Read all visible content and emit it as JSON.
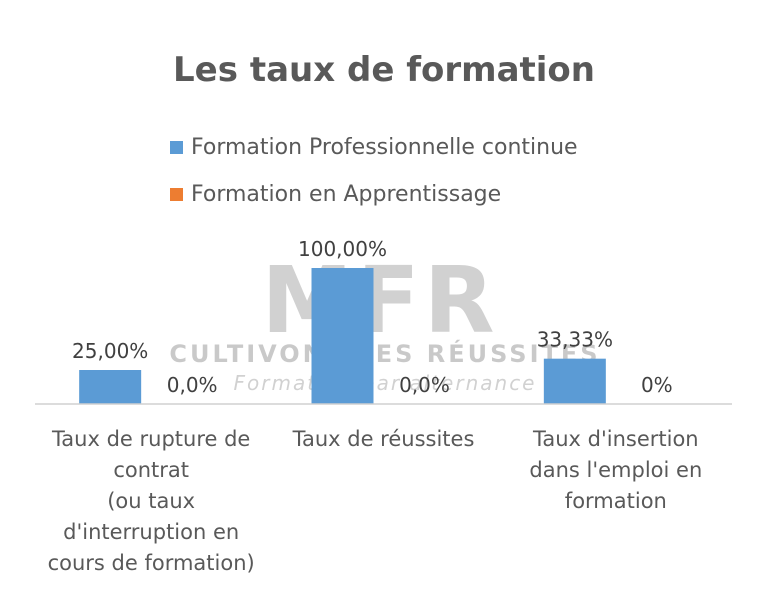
{
  "chart_data": {
    "type": "bar",
    "title": "Les taux de formation",
    "categories": [
      [
        "Taux de rupture de",
        "contrat",
        "(ou taux",
        "d'interruption en",
        "cours de formation)"
      ],
      [
        "Taux de réussites"
      ],
      [
        "Taux d'insertion",
        "dans l'emploi en",
        "formation"
      ]
    ],
    "series": [
      {
        "name": "Formation Professionnelle continue",
        "color": "#5B9BD5",
        "values": [
          25.0,
          100.0,
          33.33
        ],
        "labels": [
          "25,00%",
          "100,00%",
          "33,33%"
        ]
      },
      {
        "name": "Formation en Apprentissage",
        "color": "#ED7D31",
        "values": [
          0,
          0,
          0
        ],
        "labels": [
          "0,0%",
          "0,0%",
          "0%"
        ]
      }
    ],
    "ylim": [
      0,
      100
    ],
    "legend": "top",
    "grid": false
  },
  "watermark": {
    "logo": "MFR",
    "lines": [
      "CULTIVONS LES RÉUSSITES",
      "Formation par alternance"
    ]
  }
}
